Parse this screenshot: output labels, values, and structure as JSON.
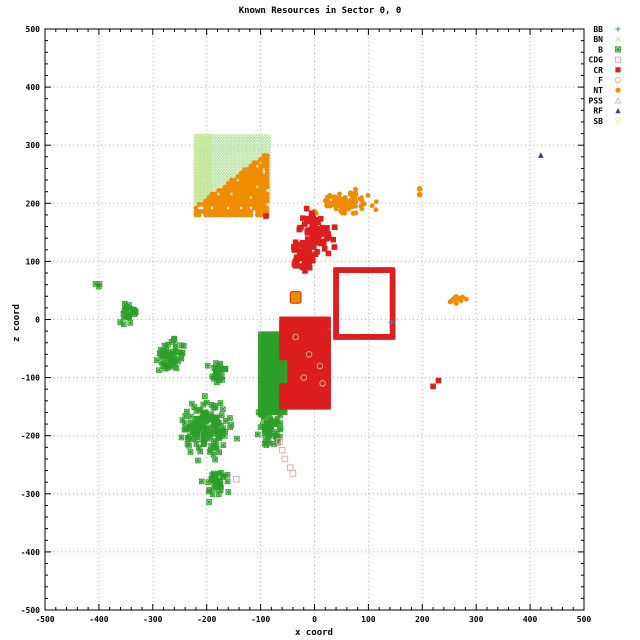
{
  "chart_data": {
    "type": "scatter",
    "title": "Known Resources in Sector 0, 0",
    "xlabel": "x coord",
    "ylabel": "z coord",
    "xlim": [
      -500,
      500
    ],
    "ylim": [
      -500,
      500
    ],
    "grid": true,
    "legend_position": "right-top",
    "x_ticks": [
      -500,
      -400,
      -300,
      -200,
      -100,
      0,
      100,
      200,
      300,
      400,
      500
    ],
    "y_ticks": [
      -500,
      -400,
      -300,
      -200,
      -100,
      0,
      100,
      200,
      300,
      400,
      500
    ],
    "series": [
      {
        "name": "BB",
        "marker": "plus",
        "color": "#4a7fc1",
        "points": [
          [
            143,
            -5
          ]
        ]
      },
      {
        "name": "BN",
        "marker": "x",
        "color": "#b7e3a3",
        "region": {
          "x": [
            -220,
            -85
          ],
          "z": [
            200,
            315
          ]
        }
      },
      {
        "name": "B",
        "marker": "boxed-star",
        "color": "#2e9e2a",
        "clusters": [
          {
            "cx": -400,
            "cz": 60,
            "n": 3
          },
          {
            "cx": -345,
            "cz": 10,
            "n": 25
          },
          {
            "cx": -270,
            "cz": -60,
            "n": 60
          },
          {
            "cx": -180,
            "cz": -90,
            "n": 30
          },
          {
            "cx": -200,
            "cz": -190,
            "n": 150
          },
          {
            "cx": -85,
            "cz": -185,
            "n": 60
          },
          {
            "cx": -180,
            "cz": -285,
            "n": 40
          }
        ],
        "region": {
          "x": [
            -100,
            -55
          ],
          "z": [
            -160,
            -25
          ]
        }
      },
      {
        "name": "CDG",
        "marker": "open-square",
        "color": "#f2a7a7",
        "points": [
          [
            -65,
            -210
          ],
          [
            -60,
            -225
          ],
          [
            -55,
            -240
          ],
          [
            -45,
            -255
          ],
          [
            -40,
            -265
          ],
          [
            -145,
            -275
          ],
          [
            -40,
            -125
          ]
        ]
      },
      {
        "name": "CR",
        "marker": "filled-square",
        "color": "#dc1e1e",
        "clusters": [
          {
            "cx": 0,
            "cz": 150,
            "n": 80
          },
          {
            "cx": -20,
            "cz": 105,
            "n": 50
          }
        ],
        "rect_outline": {
          "x": [
            40,
            145
          ],
          "z": [
            -30,
            85
          ]
        },
        "region": {
          "x": [
            -60,
            25
          ],
          "z": [
            -150,
            0
          ]
        },
        "points": [
          [
            230,
            -105
          ],
          [
            220,
            -115
          ],
          [
            -90,
            178
          ]
        ]
      },
      {
        "name": "F",
        "marker": "open-circle",
        "color": "#f4b183",
        "points": [
          [
            -35,
            -30
          ],
          [
            -10,
            -60
          ],
          [
            10,
            -80
          ],
          [
            -20,
            -100
          ],
          [
            15,
            -110
          ]
        ]
      },
      {
        "name": "NT",
        "marker": "filled-circle",
        "color": "#f08c00",
        "clusters": [
          {
            "cx": 55,
            "cz": 200,
            "n": 90
          },
          {
            "cx": 265,
            "cz": 35,
            "n": 15
          }
        ],
        "triangle_fill": {
          "x": [
            -220,
            -85
          ],
          "z": [
            180,
            290
          ]
        },
        "block": {
          "x": [
            -45,
            -25
          ],
          "z": [
            28,
            48
          ]
        },
        "points": [
          [
            195,
            225
          ],
          [
            195,
            215
          ]
        ]
      },
      {
        "name": "PSS",
        "marker": "open-triangle",
        "color": "#c8b8e8",
        "points": [
          [
            -95,
            270
          ],
          [
            -92,
            255
          ]
        ]
      },
      {
        "name": "RF",
        "marker": "filled-triangle",
        "color": "#4b2f8f",
        "points": [
          [
            420,
            283
          ]
        ]
      },
      {
        "name": "SB",
        "marker": "open-triangle-down",
        "color": "#f7f0a0",
        "region": {
          "x": [
            -220,
            -195
          ],
          "z": [
            205,
            315
          ]
        }
      }
    ]
  }
}
